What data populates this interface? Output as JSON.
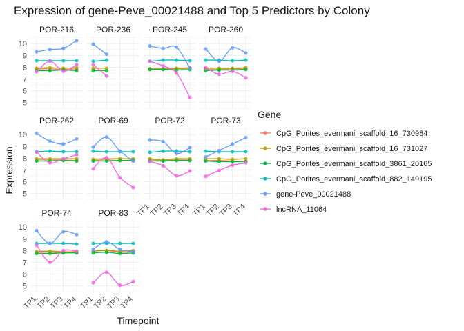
{
  "chart_data": {
    "type": "line",
    "title": "Expression of gene-Peve_00021488 and Top 5 Predictors by Colony",
    "xlabel": "Timepoint",
    "ylabel": "Expression",
    "timepoints": [
      "TP1",
      "TP2",
      "TP3",
      "TP4"
    ],
    "ylim": [
      4.5,
      10.6
    ],
    "yticks": [
      5,
      6,
      7,
      8,
      9,
      10
    ],
    "legend": {
      "title": "Gene",
      "position": "right"
    },
    "series": [
      {
        "name": "CpG_Porites_evermani_scaffold_16_730984",
        "color": "#F8766D"
      },
      {
        "name": "CpG_Porites_evermani_scaffold_16_731027",
        "color": "#B79F00"
      },
      {
        "name": "CpG_Porites_evermani_scaffold_3861_20165",
        "color": "#00BA38"
      },
      {
        "name": "CpG_Porites_evermani_scaffold_882_149195",
        "color": "#00BFC4"
      },
      {
        "name": "gene-Peve_00021488",
        "color": "#619CFF"
      },
      {
        "name": "lncRNA_11064",
        "color": "#F564E3"
      }
    ],
    "panels": [
      {
        "colony": "POR-216",
        "values": [
          [
            7.85,
            7.85,
            7.8,
            7.85
          ],
          [
            7.9,
            7.95,
            7.9,
            7.95
          ],
          [
            7.7,
            7.7,
            7.75,
            7.7
          ],
          [
            8.55,
            8.55,
            8.55,
            8.55
          ],
          [
            9.3,
            9.5,
            9.6,
            10.25
          ],
          [
            7.6,
            8.5,
            7.65,
            8.2
          ]
        ]
      },
      {
        "colony": "POR-236",
        "values": [
          [
            7.8,
            null,
            null,
            null
          ],
          [
            7.9,
            7.9,
            null,
            null
          ],
          [
            7.7,
            7.7,
            null,
            null
          ],
          [
            8.5,
            8.6,
            null,
            null
          ],
          [
            9.95,
            9.1,
            null,
            null
          ],
          [
            8.2,
            7.25,
            null,
            null
          ]
        ]
      },
      {
        "colony": "POR-245",
        "values": [
          [
            7.85,
            7.85,
            7.85,
            7.9
          ],
          [
            7.85,
            7.85,
            7.9,
            7.95
          ],
          [
            7.8,
            7.8,
            7.75,
            7.8
          ],
          [
            8.5,
            8.6,
            8.6,
            8.55
          ],
          [
            9.8,
            9.6,
            9.7,
            7.9
          ],
          [
            8.5,
            8.1,
            7.5,
            5.4
          ]
        ]
      },
      {
        "colony": "POR-260",
        "values": [
          [
            7.8,
            7.8,
            7.85,
            7.85
          ],
          [
            7.9,
            7.9,
            7.9,
            7.95
          ],
          [
            7.7,
            7.75,
            7.75,
            7.8
          ],
          [
            8.6,
            8.6,
            8.55,
            8.6
          ],
          [
            9.55,
            8.5,
            9.65,
            9.2
          ],
          [
            7.95,
            7.4,
            7.65,
            7.1
          ]
        ]
      },
      {
        "colony": "POR-262",
        "values": [
          [
            7.85,
            7.85,
            7.85,
            7.8
          ],
          [
            7.95,
            7.95,
            7.95,
            7.95
          ],
          [
            7.75,
            7.75,
            7.8,
            7.75
          ],
          [
            8.55,
            8.6,
            8.55,
            8.55
          ],
          [
            10.1,
            9.45,
            9.2,
            9.65
          ],
          [
            8.5,
            7.6,
            7.95,
            8.3
          ]
        ]
      },
      {
        "colony": "POR-69",
        "values": [
          [
            7.8,
            7.85,
            7.8,
            7.85
          ],
          [
            7.9,
            7.95,
            7.95,
            7.95
          ],
          [
            7.75,
            7.75,
            7.8,
            7.8
          ],
          [
            8.6,
            8.55,
            8.55,
            8.55
          ],
          [
            8.95,
            9.8,
            8.6,
            7.75
          ],
          [
            7.1,
            8.05,
            6.35,
            5.5
          ]
        ]
      },
      {
        "colony": "POR-72",
        "values": [
          [
            7.85,
            7.8,
            7.85,
            7.85
          ],
          [
            7.95,
            7.85,
            7.95,
            7.95
          ],
          [
            7.75,
            7.75,
            7.8,
            7.8
          ],
          [
            8.5,
            8.6,
            8.6,
            8.55
          ],
          [
            9.55,
            9.4,
            8.4,
            8.9
          ],
          [
            7.7,
            7.35,
            6.5,
            6.9
          ]
        ]
      },
      {
        "colony": "POR-73",
        "values": [
          [
            7.8,
            7.8,
            7.75,
            7.75
          ],
          [
            7.95,
            7.95,
            7.9,
            7.95
          ],
          [
            7.75,
            7.7,
            7.7,
            7.7
          ],
          [
            8.6,
            8.55,
            8.55,
            8.55
          ],
          [
            8.1,
            8.65,
            9.2,
            9.75
          ],
          [
            6.45,
            6.95,
            7.4,
            7.6
          ]
        ]
      },
      {
        "colony": "POR-74",
        "values": [
          [
            7.85,
            7.85,
            7.85,
            7.85
          ],
          [
            7.9,
            7.95,
            7.9,
            7.9
          ],
          [
            7.75,
            7.75,
            7.8,
            7.8
          ],
          [
            8.6,
            8.6,
            8.6,
            8.55
          ],
          [
            9.7,
            8.6,
            9.6,
            9.35
          ],
          [
            8.45,
            7.0,
            8.0,
            7.95
          ]
        ]
      },
      {
        "colony": "POR-83",
        "values": [
          [
            7.95,
            8.0,
            7.85,
            7.9
          ],
          [
            7.95,
            8.0,
            7.95,
            8.0
          ],
          [
            7.8,
            7.85,
            7.75,
            7.8
          ],
          [
            8.6,
            8.6,
            8.6,
            8.6
          ],
          [
            8.1,
            8.75,
            8.1,
            7.9
          ],
          [
            5.25,
            6.15,
            5.05,
            5.35
          ]
        ]
      }
    ]
  }
}
